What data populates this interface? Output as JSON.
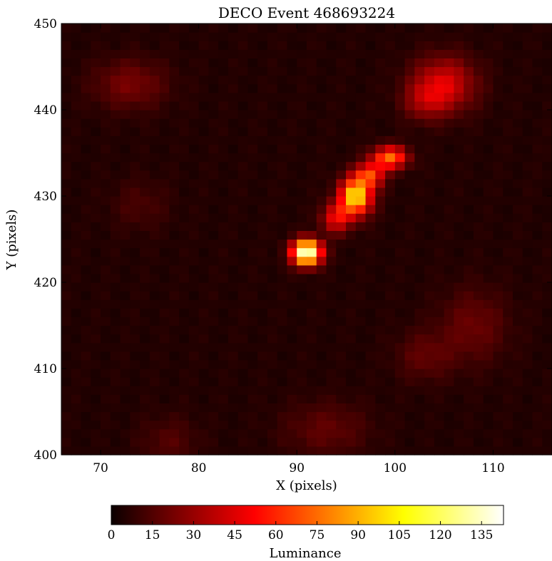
{
  "chart_data": {
    "type": "heatmap",
    "title": "DECO Event 468693224",
    "xlabel": "X (pixels)",
    "ylabel": "Y (pixels)",
    "xlim": [
      66,
      116
    ],
    "ylim": [
      400,
      450
    ],
    "xticks": [
      70,
      80,
      90,
      100,
      110
    ],
    "yticks": [
      400,
      410,
      420,
      430,
      440,
      450
    ],
    "grid": false,
    "colormap": "hot",
    "colorbar": {
      "label": "Luminance",
      "orientation": "horizontal",
      "placement": "bottom",
      "range": [
        0,
        143
      ],
      "ticks": [
        0,
        15,
        30,
        45,
        60,
        75,
        90,
        105,
        120,
        135
      ]
    },
    "hotspots": [
      {
        "x": 91,
        "y": 423.5,
        "peak": 143,
        "sx": 1.0,
        "sy": 1.0
      },
      {
        "x": 96,
        "y": 430,
        "peak": 100,
        "sx": 1.1,
        "sy": 1.5
      },
      {
        "x": 99.5,
        "y": 434.5,
        "peak": 70,
        "sx": 1.2,
        "sy": 0.9
      },
      {
        "x": 94,
        "y": 427.5,
        "peak": 45,
        "sx": 1.0,
        "sy": 1.2
      },
      {
        "x": 97.5,
        "y": 432.5,
        "peak": 55,
        "sx": 1.0,
        "sy": 1.0
      },
      {
        "x": 105,
        "y": 443,
        "peak": 40,
        "sx": 2.2,
        "sy": 2.2
      },
      {
        "x": 103,
        "y": 441,
        "peak": 20,
        "sx": 1.5,
        "sy": 1.5
      },
      {
        "x": 73,
        "y": 443,
        "peak": 18,
        "sx": 2.6,
        "sy": 2.0
      },
      {
        "x": 108,
        "y": 415,
        "peak": 15,
        "sx": 2.4,
        "sy": 3.0
      },
      {
        "x": 103,
        "y": 411.5,
        "peak": 13,
        "sx": 2.0,
        "sy": 2.0
      },
      {
        "x": 93,
        "y": 403,
        "peak": 13,
        "sx": 3.0,
        "sy": 2.2
      },
      {
        "x": 74,
        "y": 429,
        "peak": 8,
        "sx": 2.0,
        "sy": 2.0
      },
      {
        "x": 77,
        "y": 401.5,
        "peak": 10,
        "sx": 2.0,
        "sy": 2.0
      }
    ],
    "background": 5
  }
}
